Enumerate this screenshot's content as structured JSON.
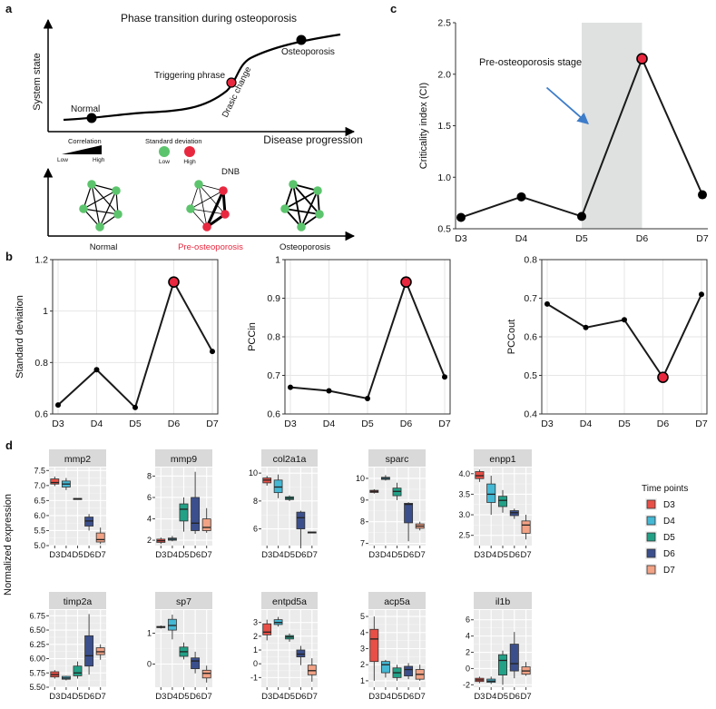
{
  "panel_a": {
    "label": "a",
    "title": "Phase transition during osteoporosis",
    "ylabel": "System state",
    "xlabel": "Disease progression",
    "points": {
      "normal": "Normal",
      "trigger": "Triggering phrase",
      "osteo": "Osteoporosis",
      "drastic": "Drasic change"
    },
    "legend": {
      "correlation": "Correlation",
      "low": "Low",
      "high": "High",
      "sd": "Standard deviation",
      "sd_low": "Low",
      "sd_high": "High"
    },
    "networks": [
      "Normal",
      "Pre-osteoporosis",
      "Osteoporosis"
    ],
    "dnb": "DNB",
    "colors": {
      "green": "#5cc46d",
      "red": "#e8283f",
      "pre_text": "#e8283f"
    }
  },
  "chart_data": [
    {
      "id": "b1",
      "type": "line",
      "panel": "b",
      "categories": [
        "D3",
        "D4",
        "D5",
        "D6",
        "D7"
      ],
      "values": [
        0.635,
        0.772,
        0.625,
        1.113,
        0.843
      ],
      "highlight_index": 3,
      "ylabel": "Standard deviation",
      "ylim": [
        0.6,
        1.2
      ],
      "yticks": [
        "0.6",
        "0.8",
        "1",
        "1.2"
      ],
      "grid": true
    },
    {
      "id": "b2",
      "type": "line",
      "panel": "b",
      "categories": [
        "D3",
        "D4",
        "D5",
        "D6",
        "D7"
      ],
      "values": [
        0.669,
        0.66,
        0.64,
        0.942,
        0.696
      ],
      "highlight_index": 3,
      "ylabel": "PCCin",
      "ylim": [
        0.6,
        1.0
      ],
      "yticks": [
        "0.6",
        "0.7",
        "0.8",
        "0.9",
        "1"
      ],
      "grid": true
    },
    {
      "id": "b3",
      "type": "line",
      "panel": "b",
      "categories": [
        "D3",
        "D4",
        "D5",
        "D6",
        "D7"
      ],
      "values": [
        0.685,
        0.624,
        0.644,
        0.495,
        0.71
      ],
      "highlight_index": 3,
      "ylabel": "PCCout",
      "ylim": [
        0.4,
        0.8
      ],
      "yticks": [
        "0.4",
        "0.5",
        "0.6",
        "0.7",
        "0.8"
      ],
      "grid": true
    },
    {
      "id": "c",
      "type": "line",
      "panel": "c",
      "categories": [
        "D3",
        "D4",
        "D5",
        "D6",
        "D7"
      ],
      "values": [
        0.61,
        0.81,
        0.62,
        2.15,
        0.83
      ],
      "highlight_index": 3,
      "shade_range": [
        "D5",
        "D6"
      ],
      "annotation": "Pre-osteoporosis stage",
      "ylabel": "Criticality index (CI)",
      "ylim": [
        0.5,
        2.5
      ],
      "yticks": [
        "0.5",
        "1.0",
        "1.5",
        "2.0",
        "2.5"
      ],
      "grid": false
    },
    {
      "id": "d",
      "type": "boxplot",
      "panel": "d",
      "ylabel": "Normalized expression",
      "categories": [
        "D3",
        "D4",
        "D5",
        "D6",
        "D7"
      ],
      "legend": {
        "title": "Time points",
        "entries": [
          "D3",
          "D4",
          "D5",
          "D6",
          "D7"
        ],
        "colors": [
          "#e84f46",
          "#45b8d4",
          "#22a187",
          "#3b4f8c",
          "#f2a285"
        ]
      },
      "facets": [
        {
          "name": "mmp2",
          "ylim": [
            5.0,
            7.6
          ],
          "yticks": [
            5.0,
            5.5,
            6.0,
            6.5,
            7.0,
            7.5
          ],
          "boxes": [
            [
              6.98,
              7.05,
              7.1,
              7.22,
              7.3
            ],
            [
              6.85,
              6.95,
              7.05,
              7.15,
              7.25
            ],
            [
              6.55,
              6.55,
              6.56,
              6.57,
              6.57
            ],
            [
              5.5,
              5.65,
              5.82,
              5.95,
              6.05
            ],
            [
              5.05,
              5.12,
              5.2,
              5.42,
              5.6
            ]
          ]
        },
        {
          "name": "mmp9",
          "ylim": [
            1.5,
            8.8
          ],
          "yticks": [
            2,
            4,
            6,
            8
          ],
          "boxes": [
            [
              1.65,
              1.8,
              1.95,
              2.1,
              2.25
            ],
            [
              1.9,
              2.0,
              2.1,
              2.2,
              2.4
            ],
            [
              2.8,
              3.8,
              4.9,
              5.4,
              6.0
            ],
            [
              2.6,
              2.9,
              3.6,
              6.0,
              8.4
            ],
            [
              2.7,
              2.9,
              3.2,
              4.0,
              5.0
            ]
          ]
        },
        {
          "name": "col2a1a",
          "ylim": [
            4.8,
            10.4
          ],
          "yticks": [
            6,
            8,
            10
          ],
          "boxes": [
            [
              9.1,
              9.3,
              9.5,
              9.65,
              9.8
            ],
            [
              8.2,
              8.6,
              9.0,
              9.5,
              9.9
            ],
            [
              8.0,
              8.1,
              8.2,
              8.3,
              8.4
            ],
            [
              4.8,
              6.0,
              6.8,
              7.2,
              7.3
            ],
            [
              5.7,
              5.72,
              5.75,
              5.78,
              5.8
            ]
          ]
        },
        {
          "name": "sparc",
          "ylim": [
            6.9,
            10.5
          ],
          "yticks": [
            7,
            8,
            9,
            10
          ],
          "boxes": [
            [
              9.3,
              9.35,
              9.4,
              9.45,
              9.5
            ],
            [
              9.9,
              9.95,
              10.0,
              10.05,
              10.15
            ],
            [
              9.0,
              9.2,
              9.4,
              9.55,
              9.8
            ],
            [
              7.1,
              7.95,
              8.8,
              8.85,
              8.9
            ],
            [
              7.6,
              7.7,
              7.8,
              7.9,
              8.0
            ]
          ]
        },
        {
          "name": "enpp1",
          "ylim": [
            2.25,
            4.15
          ],
          "yticks": [
            2.5,
            3.0,
            3.5,
            4.0
          ],
          "boxes": [
            [
              3.8,
              3.88,
              3.95,
              4.05,
              4.1
            ],
            [
              3.0,
              3.3,
              3.5,
              3.75,
              3.95
            ],
            [
              3.05,
              3.2,
              3.35,
              3.45,
              3.6
            ],
            [
              2.9,
              2.98,
              3.05,
              3.1,
              3.15
            ],
            [
              2.4,
              2.55,
              2.75,
              2.85,
              3.0
            ]
          ]
        },
        {
          "name": "timp2a",
          "ylim": [
            5.5,
            6.85
          ],
          "yticks": [
            5.5,
            5.75,
            6.0,
            6.25,
            6.5,
            6.75
          ],
          "boxes": [
            [
              5.65,
              5.68,
              5.72,
              5.77,
              5.8
            ],
            [
              5.62,
              5.64,
              5.66,
              5.69,
              5.7
            ],
            [
              5.65,
              5.7,
              5.75,
              5.87,
              5.95
            ],
            [
              5.72,
              5.87,
              6.05,
              6.4,
              6.78
            ],
            [
              5.98,
              6.07,
              6.12,
              6.19,
              6.25
            ]
          ]
        },
        {
          "name": "sp7",
          "ylim": [
            -0.75,
            1.75
          ],
          "yticks": [
            0,
            1
          ],
          "boxes": [
            [
              1.15,
              1.18,
              1.2,
              1.22,
              1.25
            ],
            [
              0.8,
              1.1,
              1.25,
              1.45,
              1.6
            ],
            [
              0.15,
              0.25,
              0.4,
              0.55,
              0.7
            ],
            [
              -0.3,
              -0.15,
              0.1,
              0.2,
              0.4
            ],
            [
              -0.6,
              -0.45,
              -0.3,
              -0.2,
              -0.05
            ]
          ]
        },
        {
          "name": "entpd5a",
          "ylim": [
            -1.7,
            3.9
          ],
          "yticks": [
            -1,
            0,
            1,
            2,
            3
          ],
          "boxes": [
            [
              1.7,
              2.1,
              2.3,
              2.9,
              3.2
            ],
            [
              2.7,
              2.85,
              3.0,
              3.2,
              3.4
            ],
            [
              1.6,
              1.8,
              1.95,
              2.05,
              2.2
            ],
            [
              -0.1,
              0.5,
              0.7,
              1.0,
              1.3
            ],
            [
              -1.3,
              -0.8,
              -0.5,
              -0.1,
              0.4
            ]
          ]
        },
        {
          "name": "acp5a",
          "ylim": [
            0.6,
            5.4
          ],
          "yticks": [
            1,
            2,
            3,
            4,
            5
          ],
          "boxes": [
            [
              1.0,
              2.2,
              3.6,
              4.2,
              5.0
            ],
            [
              1.2,
              1.5,
              2.0,
              2.2,
              2.3
            ],
            [
              1.0,
              1.2,
              1.5,
              1.8,
              2.0
            ],
            [
              1.1,
              1.3,
              1.7,
              1.9,
              2.1
            ],
            [
              1.0,
              1.1,
              1.4,
              1.7,
              2.0
            ]
          ]
        },
        {
          "name": "il1b",
          "ylim": [
            -2.3,
            7.2
          ],
          "yticks": [
            -2,
            0,
            2,
            4,
            6
          ],
          "boxes": [
            [
              -1.8,
              -1.6,
              -1.4,
              -1.2,
              -1.0
            ],
            [
              -1.9,
              -1.7,
              -1.55,
              -1.3,
              -1.0
            ],
            [
              -2.0,
              -0.8,
              1.0,
              1.7,
              2.2
            ],
            [
              -1.2,
              -0.3,
              0.6,
              3.0,
              4.5
            ],
            [
              -0.9,
              -0.7,
              -0.3,
              0.2,
              0.8
            ]
          ]
        }
      ]
    }
  ],
  "labels": {
    "b": "b",
    "c": "c",
    "d": "d"
  }
}
